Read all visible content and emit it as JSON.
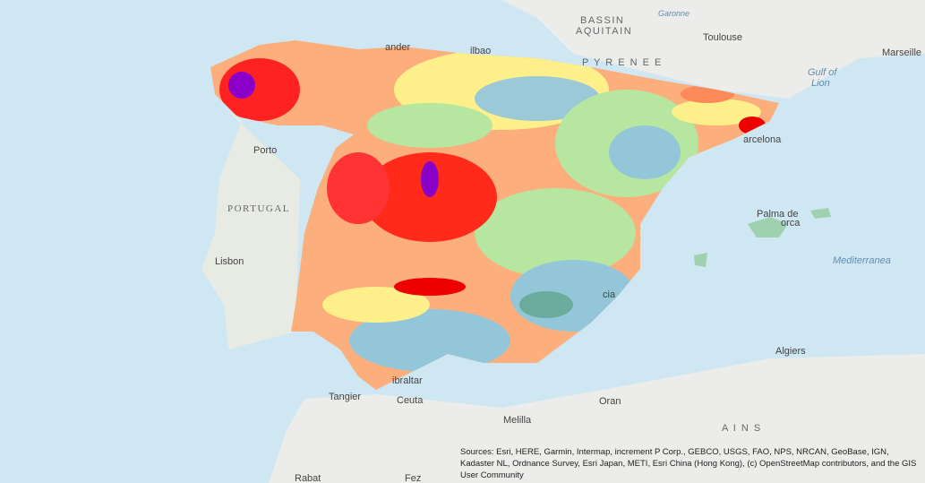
{
  "map": {
    "labels": {
      "bassin": "BASSIN",
      "aquitain": "AQUITAIN",
      "garonne": "Garonne",
      "toulouse": "Toulouse",
      "marseille": "Marseille",
      "gulf1": "Gulf of",
      "gulf2": "Lion",
      "pyrenees": "P Y R E N E E",
      "santander": "ander",
      "bilbao": "ilbao",
      "porto": "Porto",
      "portugal": "PORTUGAL",
      "lisbon": "Lisbon",
      "barcelona": "arcelona",
      "palma1": "Palma de",
      "palma2": "orca",
      "mediterranean": "Mediterranea",
      "valencia": "cia",
      "algiers": "Algiers",
      "gibraltar": "ibraltar",
      "tangier": "Tangier",
      "ceuta": "Ceuta",
      "oran": "Oran",
      "melilla": "Melilla",
      "ains": "A I N S",
      "rabat": "Rabat",
      "fez": "Fez"
    },
    "attribution": "Sources: Esri, HERE, Garmin, Intermap, increment P Corp., GEBCO, USGS, FAO, NPS, NRCAN, GeoBase, IGN, Kadaster NL, Ordnance Survey, Esri Japan, METI, Esri China (Hong Kong), (c) OpenStreetMap contributors, and the GIS User Community"
  }
}
